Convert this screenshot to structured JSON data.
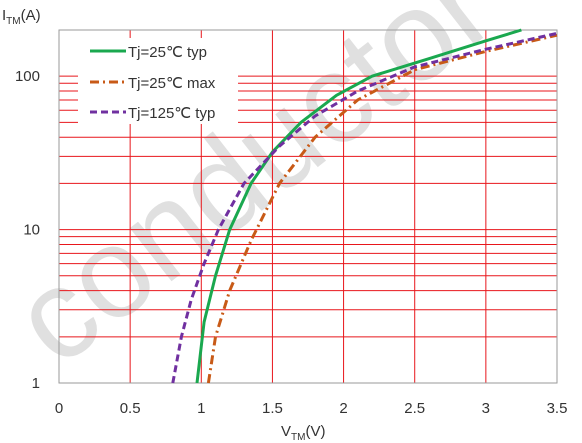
{
  "watermark": "conductor",
  "chart_data": {
    "type": "line",
    "title": "",
    "xlabel": {
      "main": "V",
      "sub": "TM",
      "unit": "(V)"
    },
    "ylabel": {
      "main": "I",
      "sub": "TM",
      "unit": "(A)"
    },
    "xlim": [
      0,
      3.5
    ],
    "ylim": [
      1,
      200
    ],
    "yscale": "log",
    "x_ticks": [
      {
        "value": 0,
        "label": "0"
      },
      {
        "value": 0.5,
        "label": "0.5"
      },
      {
        "value": 1,
        "label": "1"
      },
      {
        "value": 1.5,
        "label": "1.5"
      },
      {
        "value": 2,
        "label": "2"
      },
      {
        "value": 2.5,
        "label": "2.5"
      },
      {
        "value": 3,
        "label": "3"
      },
      {
        "value": 3.5,
        "label": "3.5"
      }
    ],
    "y_ticks": [
      {
        "value": 1,
        "label": "1"
      },
      {
        "value": 10,
        "label": "10"
      },
      {
        "value": 100,
        "label": "100"
      }
    ],
    "grid": true,
    "grid_color": "#e8161b",
    "legend_position": "top-left",
    "series": [
      {
        "name": "Tj=25℃ typ",
        "color": "#1aa84f",
        "style": "solid",
        "x": [
          0.97,
          1.02,
          1.1,
          1.2,
          1.35,
          1.5,
          1.7,
          1.95,
          2.2,
          2.6,
          3.0,
          3.25
        ],
        "y": [
          1,
          2.5,
          5,
          10,
          20,
          32,
          50,
          75,
          100,
          130,
          170,
          200
        ]
      },
      {
        "name": "Tj=25℃ max",
        "color": "#c85a17",
        "style": "dashdot",
        "x": [
          1.05,
          1.1,
          1.2,
          1.35,
          1.55,
          1.8,
          2.1,
          2.5,
          3.0,
          3.5
        ],
        "y": [
          1,
          2,
          4,
          8.5,
          20,
          40,
          70,
          110,
          145,
          185
        ]
      },
      {
        "name": "Tj=125℃ typ",
        "color": "#7030a0",
        "style": "dashed",
        "x": [
          0.8,
          0.86,
          0.93,
          1.02,
          1.12,
          1.3,
          1.55,
          1.8,
          2.1,
          2.5,
          3.0,
          3.5
        ],
        "y": [
          1,
          2,
          3.5,
          6,
          10,
          20,
          35,
          55,
          80,
          115,
          150,
          190
        ]
      }
    ]
  }
}
